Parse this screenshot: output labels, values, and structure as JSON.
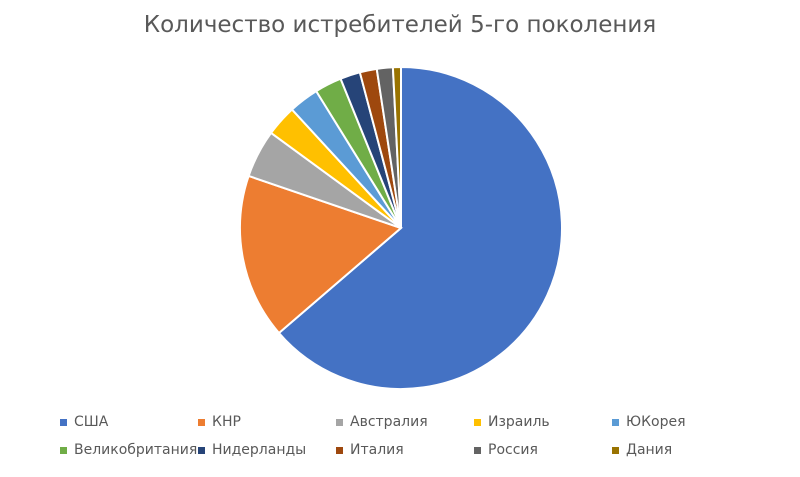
{
  "chart_data": {
    "type": "pie",
    "title": "Количество истребителей 5-го поколения",
    "categories": [
      "США",
      "КНР",
      "Австралия",
      "Израиль",
      "ЮКорея",
      "Великобритания",
      "Нидерланды",
      "Италия",
      "Россия",
      "Дания"
    ],
    "values": [
      63.5,
      16.5,
      4.8,
      3.1,
      3.0,
      2.7,
      2.0,
      1.7,
      1.6,
      0.8
    ],
    "colors": [
      "#4472C4",
      "#ED7D31",
      "#A5A5A5",
      "#FFC000",
      "#5B9BD5",
      "#70AD47",
      "#264478",
      "#9E480E",
      "#636363",
      "#997300"
    ],
    "legend_position": "bottom"
  }
}
